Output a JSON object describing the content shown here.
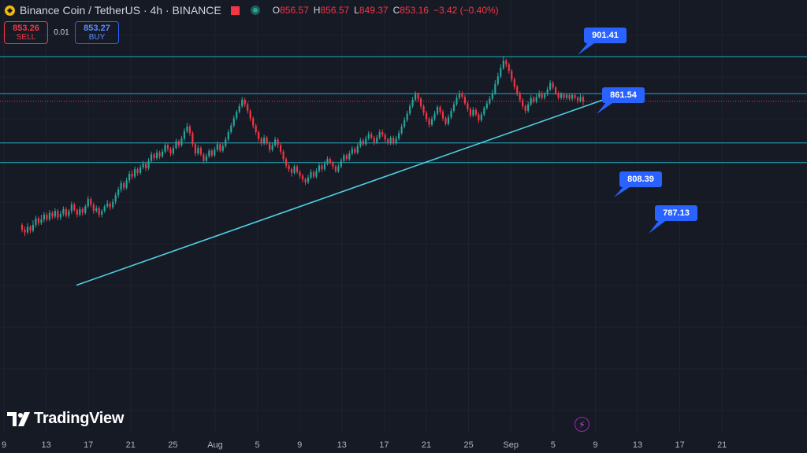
{
  "header": {
    "symbol": "Binance Coin / TetherUS · 4h · BINANCE",
    "ohlc": {
      "o_label": "O",
      "o": "856.57",
      "h_label": "H",
      "h": "856.57",
      "l_label": "L",
      "l": "849.37",
      "c_label": "C",
      "c": "853.16",
      "change": "−3.42 (−0.40%)"
    }
  },
  "trade": {
    "sell_price": "853.26",
    "sell_label": "SELL",
    "spread": "0.01",
    "buy_price": "853.27",
    "buy_label": "BUY"
  },
  "logo_text": "TradingView",
  "icons": {
    "coin": "binance-coin-icon",
    "flag": "flag-icon",
    "status": "market-status-icon",
    "logo": "tradingview-logo-icon",
    "bolt": "lightning-icon"
  },
  "colors": {
    "background": "#161a25",
    "up": "#26a69a",
    "down": "#f23645",
    "level_line": "#26c6da",
    "trend_line": "#4dd0e1",
    "callout": "#2962ff"
  },
  "chart_data": {
    "type": "candlestick",
    "x_tick_labels": [
      "9",
      "13",
      "17",
      "21",
      "25",
      "Aug",
      "5",
      "9",
      "13",
      "17",
      "21",
      "25",
      "Sep",
      "5",
      "9",
      "13",
      "17",
      "21"
    ],
    "levels": [
      {
        "value": 901.41,
        "label": "901.41"
      },
      {
        "value": 861.54,
        "label": "861.54"
      },
      {
        "value": 808.39,
        "label": "808.39"
      },
      {
        "value": 787.13,
        "label": "787.13"
      }
    ],
    "last_price": 853.16,
    "trendline": [
      {
        "x": "Jul 16",
        "y": 655
      },
      {
        "x": "Sep 3",
        "y": 858
      }
    ],
    "candles": [
      [
        720,
        715,
        722,
        712
      ],
      [
        715,
        712,
        718,
        708
      ],
      [
        712,
        718,
        722,
        710
      ],
      [
        718,
        714,
        720,
        711
      ],
      [
        714,
        720,
        725,
        712
      ],
      [
        720,
        727,
        730,
        717
      ],
      [
        727,
        722,
        729,
        719
      ],
      [
        722,
        726,
        731,
        720
      ],
      [
        726,
        731,
        734,
        723
      ],
      [
        731,
        726,
        733,
        724
      ],
      [
        726,
        733,
        736,
        724
      ],
      [
        733,
        729,
        735,
        726
      ],
      [
        729,
        735,
        738,
        727
      ],
      [
        735,
        728,
        737,
        725
      ],
      [
        728,
        732,
        735,
        725
      ],
      [
        732,
        737,
        740,
        729
      ],
      [
        737,
        730,
        739,
        728
      ],
      [
        730,
        735,
        737,
        727
      ],
      [
        735,
        742,
        745,
        732
      ],
      [
        742,
        736,
        744,
        734
      ],
      [
        736,
        731,
        738,
        728
      ],
      [
        731,
        737,
        740,
        729
      ],
      [
        737,
        733,
        739,
        730
      ],
      [
        733,
        740,
        742,
        731
      ],
      [
        740,
        748,
        751,
        738
      ],
      [
        748,
        742,
        750,
        739
      ],
      [
        742,
        735,
        744,
        732
      ],
      [
        735,
        738,
        741,
        733
      ],
      [
        738,
        731,
        740,
        728
      ],
      [
        731,
        735,
        737,
        728
      ],
      [
        735,
        740,
        742,
        733
      ],
      [
        740,
        743,
        747,
        738
      ],
      [
        743,
        739,
        745,
        736
      ],
      [
        739,
        745,
        748,
        737
      ],
      [
        745,
        752,
        755,
        742
      ],
      [
        752,
        758,
        761,
        749
      ],
      [
        758,
        765,
        768,
        755
      ],
      [
        765,
        760,
        767,
        757
      ],
      [
        760,
        768,
        771,
        758
      ],
      [
        768,
        775,
        778,
        765
      ],
      [
        775,
        772,
        779,
        769
      ],
      [
        772,
        780,
        783,
        770
      ],
      [
        780,
        776,
        782,
        773
      ],
      [
        776,
        782,
        785,
        774
      ],
      [
        782,
        786,
        789,
        780
      ],
      [
        786,
        781,
        788,
        778
      ],
      [
        781,
        789,
        792,
        779
      ],
      [
        789,
        796,
        799,
        787
      ],
      [
        796,
        792,
        798,
        789
      ],
      [
        792,
        798,
        801,
        790
      ],
      [
        798,
        794,
        800,
        791
      ],
      [
        794,
        799,
        802,
        792
      ],
      [
        799,
        806,
        809,
        797
      ],
      [
        806,
        802,
        808,
        799
      ],
      [
        802,
        797,
        804,
        794
      ],
      [
        797,
        803,
        806,
        795
      ],
      [
        803,
        810,
        813,
        801
      ],
      [
        810,
        806,
        812,
        803
      ],
      [
        806,
        813,
        816,
        804
      ],
      [
        813,
        821,
        824,
        811
      ],
      [
        821,
        826,
        830,
        819
      ],
      [
        826,
        819,
        828,
        816
      ],
      [
        819,
        807,
        821,
        804
      ],
      [
        807,
        797,
        809,
        794
      ],
      [
        797,
        803,
        806,
        795
      ],
      [
        803,
        796,
        805,
        794
      ],
      [
        796,
        789,
        798,
        786
      ],
      [
        789,
        794,
        797,
        787
      ],
      [
        794,
        800,
        802,
        792
      ],
      [
        800,
        795,
        802,
        793
      ],
      [
        795,
        801,
        804,
        793
      ],
      [
        801,
        807,
        810,
        799
      ],
      [
        807,
        800,
        809,
        798
      ],
      [
        800,
        805,
        808,
        798
      ],
      [
        805,
        812,
        815,
        803
      ],
      [
        812,
        820,
        823,
        810
      ],
      [
        820,
        827,
        830,
        818
      ],
      [
        827,
        835,
        838,
        825
      ],
      [
        835,
        842,
        844,
        833
      ],
      [
        842,
        848,
        851,
        840
      ],
      [
        848,
        855,
        858,
        846
      ],
      [
        855,
        850,
        857,
        847
      ],
      [
        850,
        843,
        852,
        840
      ],
      [
        843,
        835,
        845,
        832
      ],
      [
        835,
        827,
        837,
        824
      ],
      [
        827,
        820,
        829,
        817
      ],
      [
        820,
        813,
        822,
        810
      ],
      [
        813,
        808,
        815,
        805
      ],
      [
        808,
        814,
        817,
        806
      ],
      [
        814,
        808,
        816,
        806
      ],
      [
        808,
        801,
        810,
        798
      ],
      [
        801,
        806,
        809,
        799
      ],
      [
        806,
        812,
        815,
        804
      ],
      [
        812,
        806,
        814,
        803
      ],
      [
        806,
        799,
        808,
        796
      ],
      [
        799,
        791,
        801,
        788
      ],
      [
        791,
        784,
        793,
        781
      ],
      [
        784,
        780,
        786,
        777
      ],
      [
        780,
        776,
        782,
        772
      ],
      [
        776,
        783,
        785,
        774
      ],
      [
        783,
        777,
        785,
        775
      ],
      [
        777,
        773,
        779,
        770
      ],
      [
        773,
        769,
        775,
        766
      ],
      [
        769,
        766,
        771,
        763
      ],
      [
        766,
        771,
        774,
        764
      ],
      [
        771,
        777,
        780,
        769
      ],
      [
        777,
        772,
        779,
        770
      ],
      [
        772,
        778,
        781,
        770
      ],
      [
        778,
        784,
        787,
        776
      ],
      [
        784,
        780,
        786,
        777
      ],
      [
        780,
        786,
        789,
        778
      ],
      [
        786,
        791,
        794,
        784
      ],
      [
        791,
        787,
        793,
        785
      ],
      [
        787,
        783,
        789,
        780
      ],
      [
        783,
        778,
        785,
        776
      ],
      [
        778,
        783,
        786,
        776
      ],
      [
        783,
        789,
        792,
        781
      ],
      [
        789,
        795,
        797,
        787
      ],
      [
        795,
        791,
        797,
        789
      ],
      [
        791,
        797,
        800,
        789
      ],
      [
        797,
        802,
        805,
        795
      ],
      [
        802,
        798,
        804,
        796
      ],
      [
        798,
        805,
        808,
        796
      ],
      [
        805,
        811,
        814,
        803
      ],
      [
        811,
        807,
        813,
        805
      ],
      [
        807,
        813,
        816,
        805
      ],
      [
        813,
        818,
        821,
        811
      ],
      [
        818,
        814,
        820,
        812
      ],
      [
        814,
        809,
        816,
        806
      ],
      [
        809,
        814,
        817,
        807
      ],
      [
        814,
        820,
        823,
        812
      ],
      [
        820,
        817,
        823,
        815
      ],
      [
        817,
        812,
        819,
        809
      ],
      [
        812,
        808,
        814,
        806
      ],
      [
        808,
        814,
        816,
        806
      ],
      [
        814,
        808,
        816,
        806
      ],
      [
        808,
        813,
        816,
        806
      ],
      [
        813,
        819,
        822,
        811
      ],
      [
        819,
        826,
        829,
        817
      ],
      [
        826,
        833,
        836,
        824
      ],
      [
        833,
        840,
        843,
        831
      ],
      [
        840,
        848,
        851,
        838
      ],
      [
        848,
        855,
        858,
        846
      ],
      [
        855,
        861,
        864,
        853
      ],
      [
        861,
        856,
        863,
        853
      ],
      [
        856,
        848,
        858,
        845
      ],
      [
        848,
        841,
        850,
        838
      ],
      [
        841,
        834,
        843,
        831
      ],
      [
        834,
        828,
        836,
        825
      ],
      [
        828,
        834,
        837,
        826
      ],
      [
        834,
        840,
        843,
        832
      ],
      [
        840,
        847,
        849,
        838
      ],
      [
        847,
        842,
        849,
        839
      ],
      [
        842,
        835,
        844,
        832
      ],
      [
        835,
        829,
        837,
        827
      ],
      [
        829,
        836,
        839,
        827
      ],
      [
        836,
        843,
        846,
        834
      ],
      [
        843,
        850,
        853,
        841
      ],
      [
        850,
        857,
        860,
        848
      ],
      [
        857,
        862,
        865,
        855
      ],
      [
        862,
        858,
        864,
        856
      ],
      [
        858,
        851,
        860,
        849
      ],
      [
        851,
        845,
        853,
        842
      ],
      [
        845,
        838,
        847,
        836
      ],
      [
        838,
        844,
        847,
        836
      ],
      [
        844,
        839,
        846,
        837
      ],
      [
        839,
        833,
        841,
        830
      ],
      [
        833,
        839,
        842,
        831
      ],
      [
        839,
        846,
        848,
        837
      ],
      [
        846,
        851,
        854,
        844
      ],
      [
        851,
        856,
        859,
        849
      ],
      [
        856,
        862,
        866,
        854
      ],
      [
        862,
        872,
        876,
        860
      ],
      [
        872,
        880,
        884,
        870
      ],
      [
        880,
        889,
        893,
        878
      ],
      [
        889,
        897,
        901,
        887
      ],
      [
        897,
        893,
        899,
        890
      ],
      [
        893,
        886,
        895,
        883
      ],
      [
        886,
        877,
        888,
        874
      ],
      [
        877,
        869,
        879,
        866
      ],
      [
        869,
        862,
        871,
        859
      ],
      [
        862,
        855,
        864,
        852
      ],
      [
        855,
        848,
        857,
        845
      ],
      [
        848,
        843,
        850,
        840
      ],
      [
        843,
        850,
        853,
        841
      ],
      [
        850,
        857,
        860,
        848
      ],
      [
        857,
        853,
        859,
        851
      ],
      [
        853,
        858,
        861,
        851
      ],
      [
        858,
        862,
        865,
        856
      ],
      [
        862,
        857,
        864,
        855
      ],
      [
        857,
        861,
        863,
        855
      ],
      [
        861,
        866,
        869,
        859
      ],
      [
        866,
        873,
        876,
        864
      ],
      [
        873,
        868,
        875,
        866
      ],
      [
        868,
        862,
        870,
        860
      ],
      [
        862,
        857,
        864,
        855
      ],
      [
        857,
        861,
        863,
        855
      ],
      [
        861,
        857,
        862,
        855
      ],
      [
        857,
        860,
        862,
        855
      ],
      [
        860,
        856,
        861,
        854
      ],
      [
        856,
        860,
        862,
        854
      ],
      [
        860,
        857,
        862,
        855
      ],
      [
        857,
        854,
        859,
        851
      ],
      [
        854,
        858,
        861,
        852
      ],
      [
        858,
        853,
        860,
        849
      ]
    ]
  }
}
